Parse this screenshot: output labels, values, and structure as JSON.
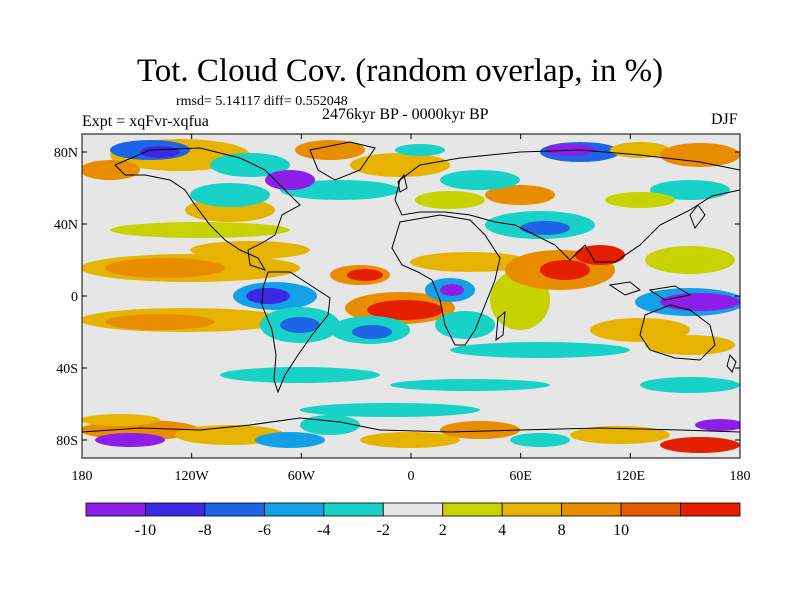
{
  "title": "Tot. Cloud Cov. (random overlap, in %)",
  "stats": "rmsd= 5.14117 diff= 0.552048",
  "expt": "Expt = xqFvr-xqfua",
  "period": "2476kyr BP - 0000kyr BP",
  "season": "DJF",
  "map": {
    "lat_ticks": [
      {
        "lat": 80,
        "label": "80N"
      },
      {
        "lat": 40,
        "label": "40N"
      },
      {
        "lat": 0,
        "label": "0"
      },
      {
        "lat": -40,
        "label": "40S"
      },
      {
        "lat": -80,
        "label": "80S"
      }
    ],
    "lon_ticks": [
      {
        "lon": -180,
        "label": "180"
      },
      {
        "lon": -120,
        "label": "120W"
      },
      {
        "lon": -60,
        "label": "60W"
      },
      {
        "lon": 0,
        "label": "0"
      },
      {
        "lon": 60,
        "label": "60E"
      },
      {
        "lon": 120,
        "label": "120E"
      },
      {
        "lon": 180,
        "label": "180"
      }
    ]
  },
  "colorbar": {
    "colors": [
      "#8c1ee8",
      "#3c28e0",
      "#1e64e6",
      "#14a0e6",
      "#18d2c8",
      "#e6e6e6",
      "#c8d200",
      "#e6b400",
      "#e88c00",
      "#e65a00",
      "#e61e00"
    ],
    "labels": [
      "-10",
      "-8",
      "-6",
      "-4",
      "-2",
      "2",
      "4",
      "8",
      "10"
    ]
  }
}
